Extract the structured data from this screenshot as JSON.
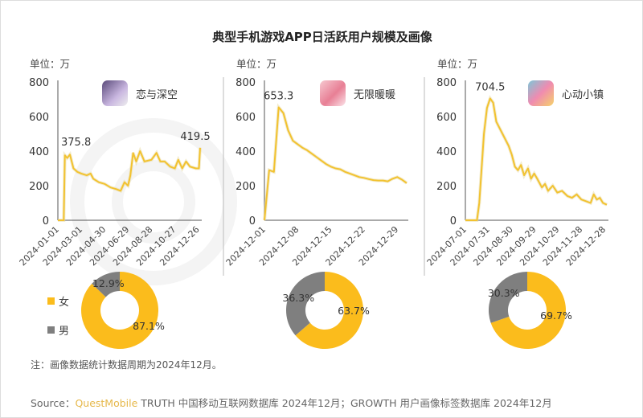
{
  "title": "典型手机游戏APP日活跃用户规模及画像",
  "note": "注：画像数据统计数据周期为2024年12月。",
  "source": {
    "prefix": "Source：",
    "brand": "QuestMobile",
    "text": " TRUTH 中国移动互联网数据库 2024年12月；GROWTH 用户画像标签数据库 2024年12月"
  },
  "legend": [
    {
      "label": "女",
      "color": "#FBBC1C"
    },
    {
      "label": "男",
      "color": "#7F7F7F"
    }
  ],
  "colors": {
    "line": "#F2C230",
    "female": "#FBBC1C",
    "male": "#7F7F7F",
    "axis": "#555555"
  },
  "chart_data": [
    {
      "type": "line",
      "app": "恋与深空",
      "app_icon": "lianyushenkong-app-icon",
      "unit_label": "单位：万",
      "ylim": [
        0,
        800
      ],
      "yticks": [
        0,
        200,
        400,
        600,
        800
      ],
      "xlim": [
        "2024-01-01",
        "2024-12-31"
      ],
      "xticks": [
        "2024-01-01",
        "2024-03-01",
        "2024-04-30",
        "2024-06-29",
        "2024-08-28",
        "2024-10-27",
        "2024-12-26"
      ],
      "x": [
        "2024-01-01",
        "2024-01-16",
        "2024-01-19",
        "2024-01-25",
        "2024-02-01",
        "2024-02-10",
        "2024-02-20",
        "2024-03-01",
        "2024-03-15",
        "2024-03-25",
        "2024-04-01",
        "2024-04-15",
        "2024-04-30",
        "2024-05-15",
        "2024-05-30",
        "2024-06-10",
        "2024-06-20",
        "2024-06-29",
        "2024-07-05",
        "2024-07-12",
        "2024-07-20",
        "2024-07-30",
        "2024-08-10",
        "2024-08-28",
        "2024-09-10",
        "2024-09-20",
        "2024-10-01",
        "2024-10-15",
        "2024-10-27",
        "2024-11-05",
        "2024-11-15",
        "2024-11-25",
        "2024-12-05",
        "2024-12-20",
        "2024-12-28",
        "2024-12-31"
      ],
      "y": [
        0,
        0,
        375.8,
        360,
        380,
        300,
        280,
        270,
        260,
        270,
        240,
        220,
        210,
        190,
        180,
        170,
        220,
        200,
        260,
        390,
        340,
        400,
        340,
        350,
        390,
        340,
        340,
        310,
        300,
        350,
        300,
        340,
        310,
        300,
        300,
        419.5
      ],
      "labels": [
        {
          "x": "2024-01-19",
          "y": 375.8,
          "text": "375.8"
        },
        {
          "x": "2024-12-31",
          "y": 419.5,
          "text": "419.5"
        }
      ],
      "gender": {
        "female": 87.1,
        "male": 12.9,
        "female_label": "87.1%",
        "male_label": "12.9%"
      }
    },
    {
      "type": "line",
      "app": "无限暖暖",
      "app_icon": "wuxiannuannuan-app-icon",
      "unit_label": "单位：万",
      "ylim": [
        0,
        800
      ],
      "yticks": [
        0,
        200,
        400,
        600,
        800
      ],
      "xlim": [
        "2024-12-01",
        "2024-12-31"
      ],
      "xticks": [
        "2024-12-01",
        "2024-12-08",
        "2024-12-15",
        "2024-12-22",
        "2024-12-29"
      ],
      "x": [
        "2024-12-01",
        "2024-12-02",
        "2024-12-03",
        "2024-12-04",
        "2024-12-05",
        "2024-12-06",
        "2024-12-07",
        "2024-12-08",
        "2024-12-09",
        "2024-12-10",
        "2024-12-11",
        "2024-12-12",
        "2024-12-13",
        "2024-12-14",
        "2024-12-15",
        "2024-12-16",
        "2024-12-17",
        "2024-12-18",
        "2024-12-19",
        "2024-12-20",
        "2024-12-21",
        "2024-12-22",
        "2024-12-23",
        "2024-12-24",
        "2024-12-25",
        "2024-12-26",
        "2024-12-27",
        "2024-12-28",
        "2024-12-29",
        "2024-12-30",
        "2024-12-31"
      ],
      "y": [
        0,
        290,
        280,
        653.3,
        620,
        520,
        460,
        440,
        420,
        405,
        385,
        365,
        345,
        325,
        310,
        300,
        295,
        280,
        270,
        260,
        250,
        245,
        238,
        232,
        230,
        230,
        225,
        240,
        250,
        235,
        215
      ],
      "labels": [
        {
          "x": "2024-12-04",
          "y": 653.3,
          "text": "653.3"
        }
      ],
      "gender": {
        "female": 63.7,
        "male": 36.3,
        "female_label": "63.7%",
        "male_label": "36.3%"
      }
    },
    {
      "type": "line",
      "app": "心动小镇",
      "app_icon": "xindongxiaozhen-app-icon",
      "unit_label": "单位：万",
      "ylim": [
        0,
        800
      ],
      "yticks": [
        0,
        200,
        400,
        600,
        800
      ],
      "xlim": [
        "2024-07-01",
        "2024-12-31"
      ],
      "xticks": [
        "2024-07-01",
        "2024-07-31",
        "2024-08-30",
        "2024-09-29",
        "2024-10-29",
        "2024-11-28",
        "2024-12-28"
      ],
      "x": [
        "2024-07-01",
        "2024-07-16",
        "2024-07-19",
        "2024-07-25",
        "2024-07-29",
        "2024-08-02",
        "2024-08-06",
        "2024-08-10",
        "2024-08-18",
        "2024-08-26",
        "2024-08-30",
        "2024-09-03",
        "2024-09-07",
        "2024-09-11",
        "2024-09-15",
        "2024-09-20",
        "2024-09-24",
        "2024-09-28",
        "2024-10-02",
        "2024-10-08",
        "2024-10-12",
        "2024-10-16",
        "2024-10-22",
        "2024-10-28",
        "2024-11-03",
        "2024-11-10",
        "2024-11-16",
        "2024-11-22",
        "2024-11-28",
        "2024-12-04",
        "2024-12-10",
        "2024-12-14",
        "2024-12-18",
        "2024-12-22",
        "2024-12-26",
        "2024-12-31"
      ],
      "y": [
        0,
        0,
        100,
        500,
        650,
        704.5,
        680,
        570,
        500,
        430,
        380,
        310,
        290,
        320,
        260,
        300,
        240,
        270,
        240,
        190,
        210,
        170,
        200,
        160,
        170,
        140,
        130,
        150,
        120,
        110,
        100,
        150,
        120,
        130,
        100,
        90
      ],
      "labels": [
        {
          "x": "2024-08-02",
          "y": 704.5,
          "text": "704.5"
        }
      ],
      "gender": {
        "female": 69.7,
        "male": 30.3,
        "female_label": "69.7%",
        "male_label": "30.3%"
      }
    }
  ]
}
